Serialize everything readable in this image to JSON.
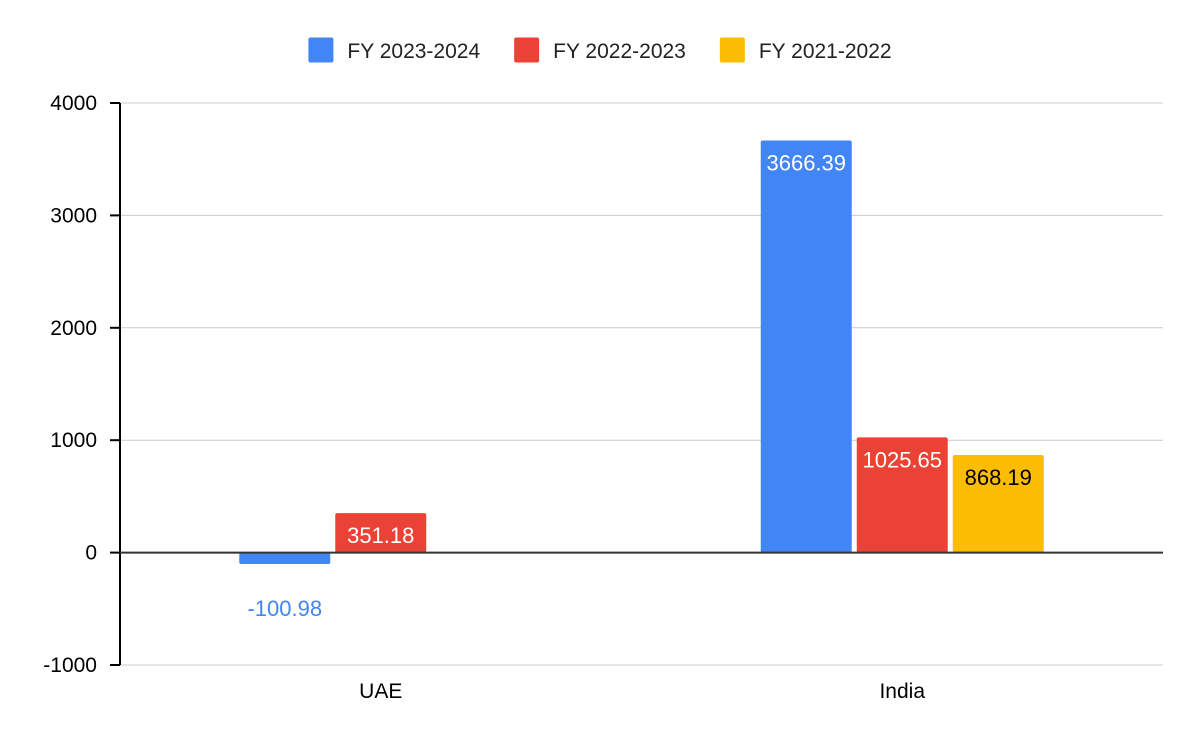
{
  "chart_data": {
    "type": "bar",
    "title": "",
    "xlabel": "",
    "ylabel": "",
    "categories": [
      "UAE",
      "India"
    ],
    "series": [
      {
        "name": "FY 2023-2024",
        "color": "#4285f4",
        "values": [
          -100.98,
          3666.39
        ],
        "labels": [
          "-100.98",
          "3666.39"
        ]
      },
      {
        "name": "FY 2022-2023",
        "color": "#ea4335",
        "values": [
          351.18,
          1025.65
        ],
        "labels": [
          "351.18",
          "1025.65"
        ]
      },
      {
        "name": "FY 2021-2022",
        "color": "#fbbc04",
        "values": [
          null,
          868.19
        ],
        "labels": [
          null,
          "868.19"
        ]
      }
    ],
    "ylim": [
      -1000,
      4000
    ],
    "yticks": [
      -1000,
      0,
      1000,
      2000,
      3000,
      4000
    ],
    "ytick_labels": [
      "-1000",
      "0",
      "1000",
      "2000",
      "3000",
      "4000"
    ],
    "grid": true,
    "legend_position": "top"
  }
}
